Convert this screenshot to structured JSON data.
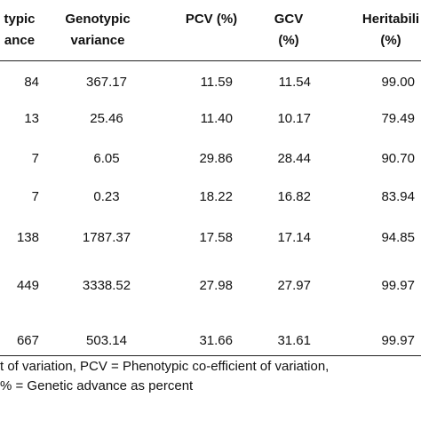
{
  "table": {
    "header": [
      [
        "typic",
        "ance"
      ],
      [
        "Genotypic",
        "variance"
      ],
      [
        "PCV (%)"
      ],
      [
        "GCV",
        "(%)"
      ],
      [
        "Heritabili",
        "(%)"
      ]
    ],
    "rows": [
      [
        "84",
        "367.17",
        "11.59",
        "11.54",
        "99.00"
      ],
      [
        "13",
        "25.46",
        "11.40",
        "10.17",
        "79.49"
      ],
      [
        "7",
        "6.05",
        "29.86",
        "28.44",
        "90.70"
      ],
      [
        "7",
        "0.23",
        "18.22",
        "16.82",
        "83.94"
      ],
      [
        "138",
        "1787.37",
        "17.58",
        "17.14",
        "94.85"
      ],
      [
        "449",
        "3338.52",
        "27.98",
        "27.97",
        "99.97"
      ],
      [
        "667",
        "503.14",
        "31.66",
        "31.61",
        "99.97"
      ]
    ]
  },
  "footnotes": [
    "t of variation, PCV = Phenotypic co-efficient of variation,",
    "% = Genetic advance as percent"
  ]
}
